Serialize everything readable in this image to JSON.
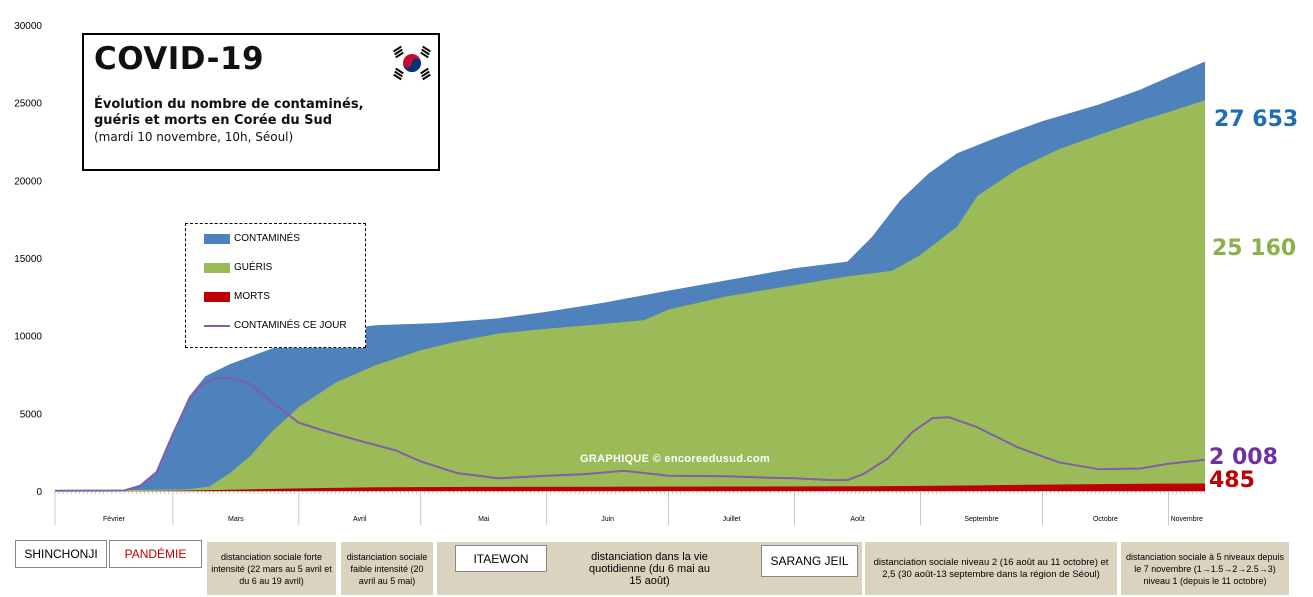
{
  "title": "COVID-19",
  "subtitle": "Évolution du nombre de contaminés, guéris et morts en Corée du Sud",
  "date_note": "(mardi 10 novembre, 10h, Séoul)",
  "watermark": "GRAPHIQUE © encoreedusud.com",
  "chart_data": {
    "type": "area",
    "y_ticks": [
      "0",
      "5000",
      "10000",
      "15000",
      "20000",
      "25000",
      "30000"
    ],
    "ylim": [
      0,
      30000
    ],
    "x_range": [
      "2020-02-01",
      "2020-11-10"
    ],
    "months": [
      "Février",
      "Mars",
      "Avril",
      "Mai",
      "Juin",
      "Juillet",
      "Août",
      "Septembre",
      "Octobre",
      "Novembre"
    ],
    "series": [
      {
        "name": "CONTAMINÉS",
        "color": "#4f81bd",
        "points": [
          [
            "2020-02-01",
            11
          ],
          [
            "2020-02-18",
            31
          ],
          [
            "2020-02-22",
            346
          ],
          [
            "2020-02-26",
            1261
          ],
          [
            "2020-03-01",
            3736
          ],
          [
            "2020-03-05",
            6088
          ],
          [
            "2020-03-09",
            7382
          ],
          [
            "2020-03-15",
            8162
          ],
          [
            "2020-03-25",
            9137
          ],
          [
            "2020-04-05",
            10237
          ],
          [
            "2020-04-20",
            10674
          ],
          [
            "2020-05-05",
            10806
          ],
          [
            "2020-05-20",
            11110
          ],
          [
            "2020-06-01",
            11541
          ],
          [
            "2020-06-15",
            12121
          ],
          [
            "2020-07-01",
            12904
          ],
          [
            "2020-07-15",
            13551
          ],
          [
            "2020-08-01",
            14336
          ],
          [
            "2020-08-14",
            14770
          ],
          [
            "2020-08-20",
            16346
          ],
          [
            "2020-08-27",
            18706
          ],
          [
            "2020-09-03",
            20449
          ],
          [
            "2020-09-10",
            21743
          ],
          [
            "2020-09-20",
            22783
          ],
          [
            "2020-10-01",
            23812
          ],
          [
            "2020-10-15",
            24889
          ],
          [
            "2020-10-25",
            25836
          ],
          [
            "2020-11-01",
            26635
          ],
          [
            "2020-11-10",
            27653
          ]
        ]
      },
      {
        "name": "GUÉRIS",
        "color": "#9bbb59",
        "points": [
          [
            "2020-02-01",
            0
          ],
          [
            "2020-03-05",
            108
          ],
          [
            "2020-03-10",
            288
          ],
          [
            "2020-03-15",
            1137
          ],
          [
            "2020-03-20",
            2233
          ],
          [
            "2020-03-25",
            3730
          ],
          [
            "2020-04-01",
            5408
          ],
          [
            "2020-04-10",
            6973
          ],
          [
            "2020-04-20",
            8114
          ],
          [
            "2020-05-01",
            9059
          ],
          [
            "2020-05-10",
            9632
          ],
          [
            "2020-05-20",
            10135
          ],
          [
            "2020-06-01",
            10446
          ],
          [
            "2020-06-15",
            10760
          ],
          [
            "2020-06-25",
            11000
          ],
          [
            "2020-07-01",
            11684
          ],
          [
            "2020-07-15",
            12513
          ],
          [
            "2020-08-01",
            13254
          ],
          [
            "2020-08-14",
            13817
          ],
          [
            "2020-08-25",
            14175
          ],
          [
            "2020-09-01",
            15198
          ],
          [
            "2020-09-10",
            17023
          ],
          [
            "2020-09-15",
            19000
          ],
          [
            "2020-09-25",
            20743
          ],
          [
            "2020-10-05",
            21990
          ],
          [
            "2020-10-15",
            22930
          ],
          [
            "2020-10-25",
            23834
          ],
          [
            "2020-11-01",
            24394
          ],
          [
            "2020-11-10",
            25160
          ]
        ]
      },
      {
        "name": "MORTS",
        "color": "#c00000",
        "points": [
          [
            "2020-02-01",
            0
          ],
          [
            "2020-02-20",
            1
          ],
          [
            "2020-03-01",
            17
          ],
          [
            "2020-03-15",
            75
          ],
          [
            "2020-04-01",
            165
          ],
          [
            "2020-04-20",
            236
          ],
          [
            "2020-05-15",
            262
          ],
          [
            "2020-06-15",
            279
          ],
          [
            "2020-07-15",
            289
          ],
          [
            "2020-08-15",
            305
          ],
          [
            "2020-09-01",
            326
          ],
          [
            "2020-09-15",
            363
          ],
          [
            "2020-10-01",
            413
          ],
          [
            "2020-10-15",
            444
          ],
          [
            "2020-11-01",
            474
          ],
          [
            "2020-11-10",
            485
          ]
        ]
      },
      {
        "name": "CONTAMINÉS CE JOUR",
        "color": "#7f5fa8",
        "points": [
          [
            "2020-02-01",
            11
          ],
          [
            "2020-02-18",
            31
          ],
          [
            "2020-02-22",
            340
          ],
          [
            "2020-02-26",
            1220
          ],
          [
            "2020-03-01",
            3660
          ],
          [
            "2020-03-05",
            5900
          ],
          [
            "2020-03-08",
            6840
          ],
          [
            "2020-03-12",
            7250
          ],
          [
            "2020-03-15",
            7300
          ],
          [
            "2020-03-20",
            6900
          ],
          [
            "2020-03-25",
            5800
          ],
          [
            "2020-04-01",
            4400
          ],
          [
            "2020-04-07",
            3900
          ],
          [
            "2020-04-15",
            3300
          ],
          [
            "2020-04-25",
            2600
          ],
          [
            "2020-05-01",
            1900
          ],
          [
            "2020-05-10",
            1150
          ],
          [
            "2020-05-20",
            820
          ],
          [
            "2020-06-01",
            980
          ],
          [
            "2020-06-10",
            1080
          ],
          [
            "2020-06-20",
            1300
          ],
          [
            "2020-07-01",
            980
          ],
          [
            "2020-07-15",
            950
          ],
          [
            "2020-07-25",
            860
          ],
          [
            "2020-08-01",
            820
          ],
          [
            "2020-08-10",
            700
          ],
          [
            "2020-08-14",
            700
          ],
          [
            "2020-08-18",
            1100
          ],
          [
            "2020-08-24",
            2100
          ],
          [
            "2020-08-30",
            3800
          ],
          [
            "2020-09-04",
            4700
          ],
          [
            "2020-09-08",
            4750
          ],
          [
            "2020-09-15",
            4100
          ],
          [
            "2020-09-25",
            2800
          ],
          [
            "2020-10-05",
            1850
          ],
          [
            "2020-10-15",
            1400
          ],
          [
            "2020-10-25",
            1450
          ],
          [
            "2020-11-01",
            1750
          ],
          [
            "2020-11-10",
            2008
          ]
        ]
      }
    ],
    "final_values": [
      {
        "value": "27 653",
        "color": "#1f6eb4"
      },
      {
        "value": "25 160",
        "color": "#8db04a"
      },
      {
        "value": "2 008",
        "color": "#7030a0"
      },
      {
        "value": "485",
        "color": "#c00000"
      }
    ],
    "annotations": {
      "white": [
        "SHINCHONJI",
        "PANDÉMIE",
        "ITAEWON",
        "SARANG JEIL"
      ],
      "tan": [
        "distanciation sociale forte intensité (22 mars au 5 avril et du 6 au 19 avril)",
        "distanciation sociale faible intensité (20 avril au 5 mai)",
        "distanciation dans la vie quotidienne (du 6 mai au 15 août)",
        "distanciation sociale niveau 2 (16 août au 11 octobre) et 2,5 (30 août-13 septembre dans la région de Séoul)",
        "distanciation sociale à 5 niveaux depuis le 7 novembre (1→1.5→2→2.5→3) niveau 1 (depuis le 11 octobre)"
      ]
    }
  }
}
